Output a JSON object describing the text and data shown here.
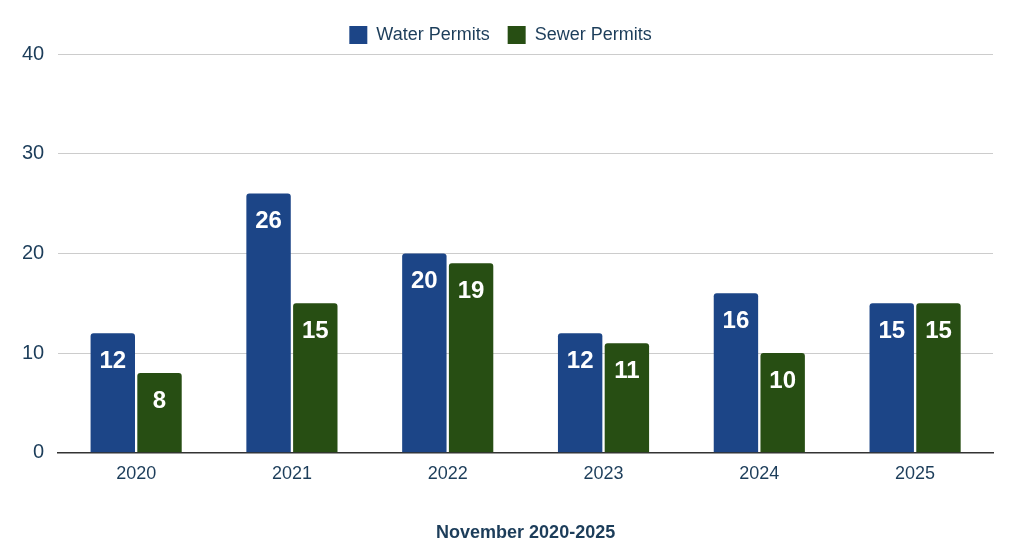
{
  "chart_data": {
    "type": "bar",
    "xlabel": "November 2020-2025",
    "categories": [
      "2020",
      "2021",
      "2022",
      "2023",
      "2024",
      "2025"
    ],
    "series": [
      {
        "name": "Water Permits",
        "color": "#1c4587",
        "values": [
          12,
          26,
          20,
          12,
          16,
          15
        ]
      },
      {
        "name": "Sewer Permits",
        "color": "#274e13",
        "values": [
          8,
          15,
          19,
          11,
          10,
          15
        ]
      }
    ],
    "ylim": [
      0,
      40
    ],
    "yticks": [
      0,
      10,
      20,
      30,
      40
    ],
    "grid": "y",
    "legend": "top",
    "data_labels": true
  }
}
